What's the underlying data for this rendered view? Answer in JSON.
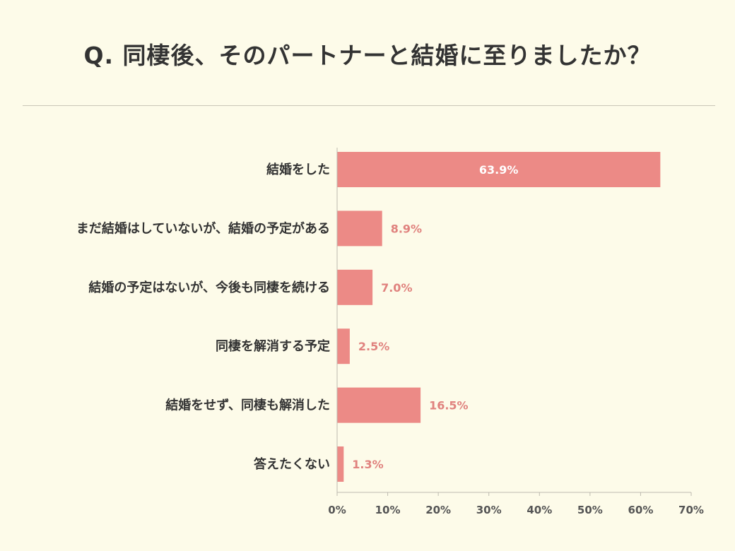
{
  "title": "Q. 同棲後、そのパートナーと結婚に至りましたか？",
  "colors": {
    "bar": "#ec8a86",
    "value_outside": "#e0827e",
    "value_inside": "#ffffff",
    "background": "#fdfbe9"
  },
  "chart_data": {
    "type": "bar",
    "orientation": "horizontal",
    "title": "Q. 同棲後、そのパートナーと結婚に至りましたか？",
    "categories": [
      "結婚をした",
      "まだ結婚はしていないが、結婚の予定がある",
      "結婚の予定はないが、今後も同棲を続ける",
      "同棲を解消する予定",
      "結婚をせず、同棲も解消した",
      "答えたくない"
    ],
    "values": [
      63.9,
      8.9,
      7.0,
      2.5,
      16.5,
      1.3
    ],
    "value_labels": [
      "63.9%",
      "8.9%",
      "7.0%",
      "2.5%",
      "16.5%",
      "1.3%"
    ],
    "xlim": [
      0,
      70
    ],
    "xticks": [
      0,
      10,
      20,
      30,
      40,
      50,
      60,
      70
    ],
    "xtick_labels": [
      "0%",
      "10%",
      "20%",
      "30%",
      "40%",
      "50%",
      "60%",
      "70%"
    ],
    "grid": false,
    "legend": "none"
  }
}
